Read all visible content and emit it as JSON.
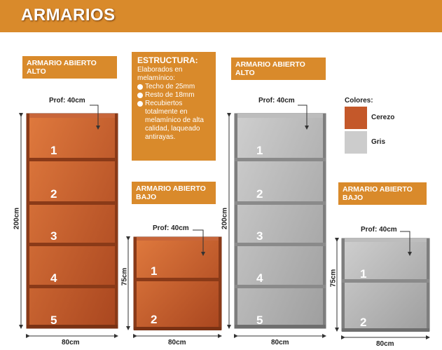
{
  "banner": {
    "title": "ARMARIOS"
  },
  "products": {
    "alto_cerezo": {
      "label": "ARMARIO ABIERTO ALTO",
      "prof": "Prof: 40cm",
      "height": "200cm",
      "width": "80cm",
      "shelves": [
        "1",
        "2",
        "3",
        "4",
        "5"
      ]
    },
    "bajo_cerezo": {
      "label": "ARMARIO ABIERTO BAJO",
      "prof": "Prof: 40cm",
      "height": "75cm",
      "width": "80cm",
      "shelves": [
        "1",
        "2"
      ]
    },
    "alto_gris": {
      "label": "ARMARIO ABIERTO ALTO",
      "prof": "Prof: 40cm",
      "height": "200cm",
      "width": "80cm",
      "shelves": [
        "1",
        "2",
        "3",
        "4",
        "5"
      ]
    },
    "bajo_gris": {
      "label": "ARMARIO ABIERTO BAJO",
      "prof": "Prof: 40cm",
      "height": "75cm",
      "width": "80cm",
      "shelves": [
        "1",
        "2"
      ]
    }
  },
  "estructura": {
    "title": "ESTRUCTURA:",
    "intro": "Elaborados en melamínico:",
    "items": [
      "Techo de 25mm",
      "Resto de 18mm",
      "Recubiertos totalmente en melamínico de alta calidad, laqueado antirayas."
    ]
  },
  "colores": {
    "title": "Colores:",
    "options": [
      {
        "name": "Cerezo",
        "color": "#c4582a"
      },
      {
        "name": "Gris",
        "color": "#cccccc"
      }
    ]
  }
}
